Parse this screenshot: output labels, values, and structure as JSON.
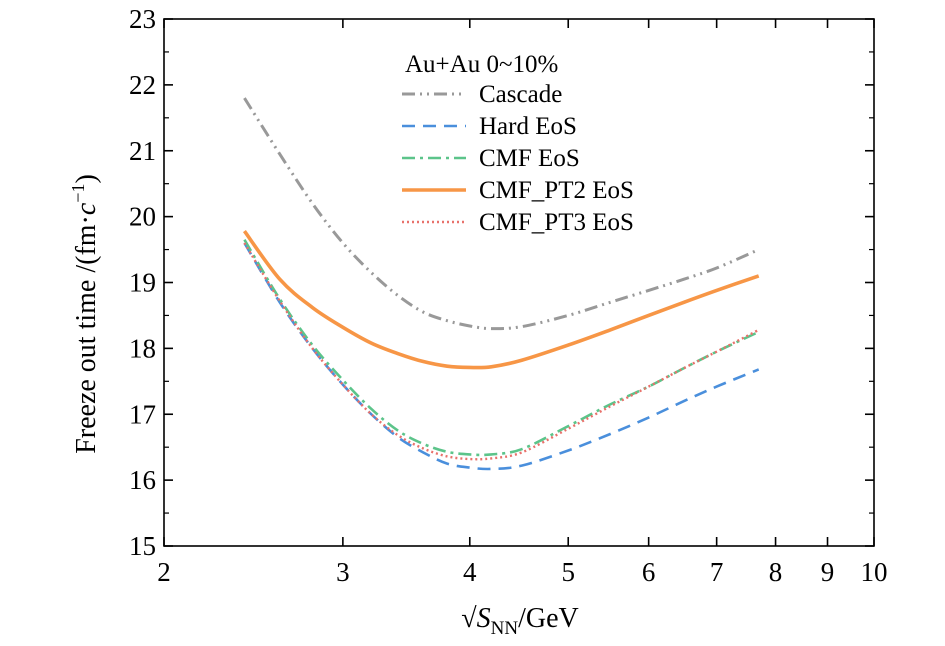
{
  "chart_data": {
    "type": "line",
    "xlabel": "√S_NN/GeV",
    "xlabel_parts": {
      "sqrt": "√",
      "var": "S",
      "sub": "NN",
      "unit": "/GeV"
    },
    "ylabel": "Freeze out time /(fm·c⁻¹)",
    "ylabel_parts": {
      "main": "Freeze out time /(fm·",
      "var": "c",
      "sup": "−1",
      "close": ")"
    },
    "x_scale": "log",
    "xlim": [
      2,
      10
    ],
    "ylim": [
      15,
      23
    ],
    "x_ticks": [
      2,
      3,
      4,
      5,
      6,
      7,
      8,
      9,
      10
    ],
    "x_tick_labels": [
      "2",
      "3",
      "4",
      "5",
      "6",
      "7",
      "8",
      "9",
      "10"
    ],
    "y_ticks": [
      15,
      16,
      17,
      18,
      19,
      20,
      21,
      22,
      23
    ],
    "y_tick_labels": [
      "15",
      "16",
      "17",
      "18",
      "19",
      "20",
      "21",
      "22",
      "23"
    ],
    "grid": false,
    "legend_title": "Au+Au 0~10%",
    "legend_position": "top-right",
    "series": [
      {
        "name": "Cascade",
        "color": "#999999",
        "style": "dash-dot-dot",
        "x": [
          2.4,
          2.6,
          2.8,
          3.0,
          3.2,
          3.4,
          3.6,
          3.8,
          4.0,
          4.2,
          4.5,
          5.0,
          5.5,
          6.0,
          6.5,
          7.0,
          7.7
        ],
        "y": [
          21.8,
          20.95,
          20.2,
          19.6,
          19.15,
          18.8,
          18.55,
          18.42,
          18.34,
          18.3,
          18.33,
          18.5,
          18.7,
          18.88,
          19.05,
          19.22,
          19.5
        ]
      },
      {
        "name": "Hard EoS",
        "color": "#4a8fdc",
        "style": "dash",
        "x": [
          2.4,
          2.6,
          2.8,
          3.0,
          3.2,
          3.4,
          3.6,
          3.8,
          4.0,
          4.2,
          4.5,
          5.0,
          5.5,
          6.0,
          6.5,
          7.0,
          7.7
        ],
        "y": [
          19.6,
          18.7,
          18.0,
          17.45,
          17.0,
          16.65,
          16.42,
          16.25,
          16.19,
          16.17,
          16.22,
          16.45,
          16.7,
          16.95,
          17.2,
          17.42,
          17.68
        ]
      },
      {
        "name": "CMF EoS",
        "color": "#5cc48a",
        "style": "dash-dot",
        "x": [
          2.4,
          2.6,
          2.8,
          3.0,
          3.2,
          3.4,
          3.6,
          3.8,
          4.0,
          4.2,
          4.5,
          5.0,
          5.5,
          6.0,
          6.5,
          7.0,
          7.7
        ],
        "y": [
          19.65,
          18.75,
          18.05,
          17.52,
          17.08,
          16.75,
          16.55,
          16.43,
          16.39,
          16.39,
          16.47,
          16.82,
          17.15,
          17.42,
          17.7,
          17.95,
          18.25
        ]
      },
      {
        "name": "CMF_PT2 EoS",
        "color": "#f79646",
        "style": "solid",
        "x": [
          2.4,
          2.6,
          2.8,
          3.0,
          3.2,
          3.4,
          3.6,
          3.8,
          4.0,
          4.2,
          4.5,
          5.0,
          5.5,
          6.0,
          6.5,
          7.0,
          7.7
        ],
        "y": [
          19.78,
          19.05,
          18.62,
          18.32,
          18.08,
          17.92,
          17.8,
          17.73,
          17.71,
          17.72,
          17.82,
          18.05,
          18.28,
          18.5,
          18.7,
          18.88,
          19.1
        ]
      },
      {
        "name": "CMF_PT3 EoS",
        "color": "#e8716b",
        "style": "dot",
        "x": [
          2.4,
          2.6,
          2.8,
          3.0,
          3.2,
          3.4,
          3.6,
          3.8,
          4.0,
          4.2,
          4.5,
          5.0,
          5.5,
          6.0,
          6.5,
          7.0,
          7.7
        ],
        "y": [
          19.6,
          18.72,
          18.0,
          17.45,
          17.0,
          16.68,
          16.48,
          16.36,
          16.32,
          16.33,
          16.42,
          16.78,
          17.12,
          17.42,
          17.7,
          17.95,
          18.28
        ]
      }
    ]
  }
}
